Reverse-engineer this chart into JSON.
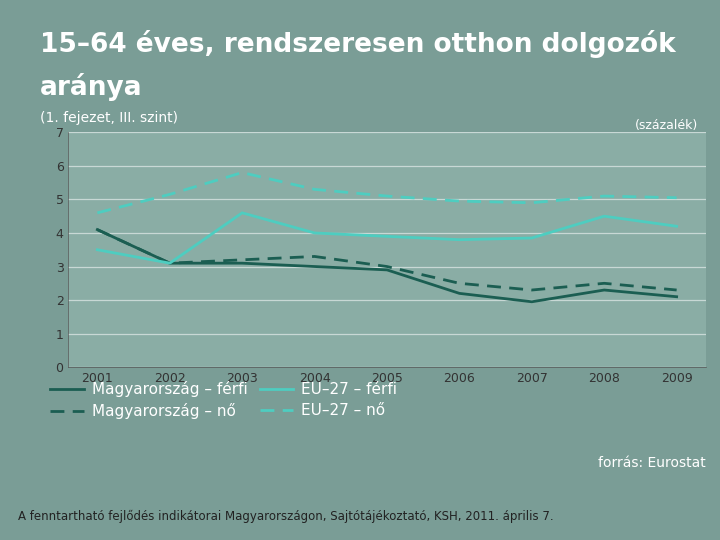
{
  "title_line1": "15–64 éves, rendszeresen otthon dolgozók",
  "title_line2": "aránya",
  "subtitle": "(1. fejezet, III. szint)",
  "unit_label": "(százalék)",
  "footer": "A fenntartható fejlődés indikátorai Magyarországon, Sajtótájékoztató, KSH, 2011. április 7.",
  "forras_label": "forrás: Eurostat",
  "years": [
    2001,
    2002,
    2003,
    2004,
    2005,
    2006,
    2007,
    2008,
    2009
  ],
  "mag_ferfi": [
    4.1,
    3.1,
    3.1,
    3.0,
    2.9,
    2.2,
    1.95,
    2.3,
    2.1
  ],
  "mag_no": [
    4.1,
    3.1,
    3.2,
    3.3,
    3.0,
    2.5,
    2.3,
    2.5,
    2.3
  ],
  "eu27_ferfi": [
    3.5,
    3.1,
    4.6,
    4.0,
    3.9,
    3.8,
    3.85,
    4.5,
    4.2
  ],
  "eu27_no": [
    4.6,
    5.15,
    5.8,
    5.3,
    5.1,
    4.95,
    4.9,
    5.1,
    5.05
  ],
  "color_mag_ferfi": "#1b5e52",
  "color_mag_no": "#1b5e52",
  "color_eu27_ferfi": "#4ecdc0",
  "color_eu27_no": "#4ecdc0",
  "bg_color": "#7a9d96",
  "plot_bg_color": "#8aada5",
  "grid_color": "#c8d8d5",
  "text_color": "#ffffff",
  "tick_color": "#333333",
  "ylim": [
    0,
    7
  ],
  "yticks": [
    0,
    1,
    2,
    3,
    4,
    5,
    6,
    7
  ]
}
